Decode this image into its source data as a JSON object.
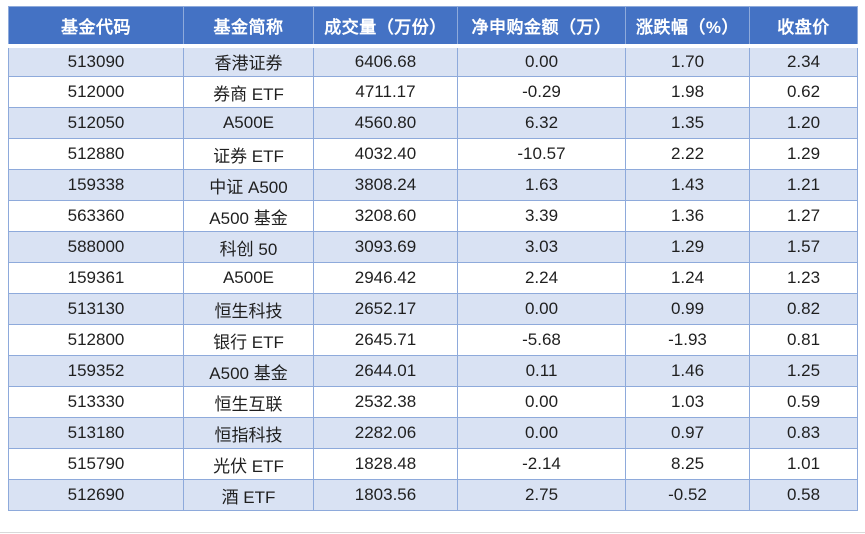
{
  "colors": {
    "header_bg": "#4472C4",
    "header_text": "#FFFFFF",
    "band_row_bg": "#D9E2F3",
    "white_row_bg": "#FFFFFF",
    "border": "#8EAADB",
    "body_text": "#1F1F1F",
    "page_bg": "#FFFFFF",
    "bottom_hairline": "#D9D9D9"
  },
  "chart_data": {
    "type": "table",
    "title": "",
    "columns": [
      "基金代码",
      "基金简称",
      "成交量（万份）",
      "净申购金额（万）",
      "涨跌幅（%）",
      "收盘价"
    ],
    "column_keys": [
      "fund-code",
      "fund-name",
      "volume",
      "net-subscription",
      "change-pct",
      "close-price"
    ],
    "rows": [
      [
        "513090",
        "香港证券",
        "6406.68",
        "0.00",
        "1.70",
        "2.34"
      ],
      [
        "512000",
        "券商 ETF",
        "4711.17",
        "-0.29",
        "1.98",
        "0.62"
      ],
      [
        "512050",
        "A500E",
        "4560.80",
        "6.32",
        "1.35",
        "1.20"
      ],
      [
        "512880",
        "证券 ETF",
        "4032.40",
        "-10.57",
        "2.22",
        "1.29"
      ],
      [
        "159338",
        "中证 A500",
        "3808.24",
        "1.63",
        "1.43",
        "1.21"
      ],
      [
        "563360",
        "A500 基金",
        "3208.60",
        "3.39",
        "1.36",
        "1.27"
      ],
      [
        "588000",
        "科创 50",
        "3093.69",
        "3.03",
        "1.29",
        "1.57"
      ],
      [
        "159361",
        "A500E",
        "2946.42",
        "2.24",
        "1.24",
        "1.23"
      ],
      [
        "513130",
        "恒生科技",
        "2652.17",
        "0.00",
        "0.99",
        "0.82"
      ],
      [
        "512800",
        "银行 ETF",
        "2645.71",
        "-5.68",
        "-1.93",
        "0.81"
      ],
      [
        "159352",
        "A500 基金",
        "2644.01",
        "0.11",
        "1.46",
        "1.25"
      ],
      [
        "513330",
        "恒生互联",
        "2532.38",
        "0.00",
        "1.03",
        "0.59"
      ],
      [
        "513180",
        "恒指科技",
        "2282.06",
        "0.00",
        "0.97",
        "0.83"
      ],
      [
        "515790",
        "光伏 ETF",
        "1828.48",
        "-2.14",
        "8.25",
        "1.01"
      ],
      [
        "512690",
        "酒 ETF",
        "1803.56",
        "2.75",
        "-0.52",
        "0.58"
      ]
    ]
  }
}
